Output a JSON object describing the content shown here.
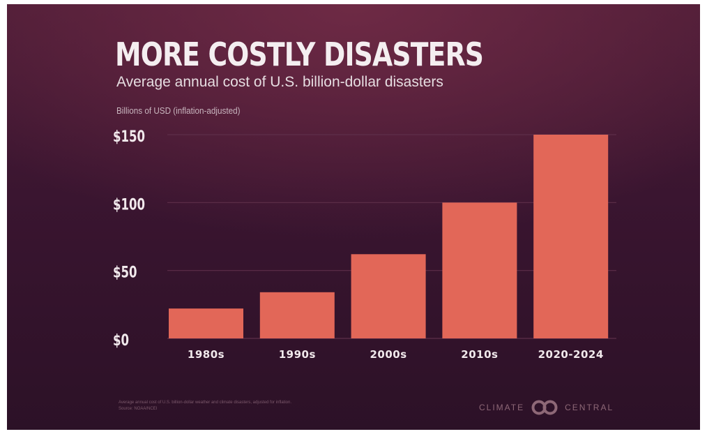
{
  "header": {
    "title": "MORE COSTLY DISASTERS",
    "subtitle": "Average annual cost of U.S. billion-dollar disasters",
    "unit_label": "Billions of USD (inflation-adjusted)"
  },
  "footer": {
    "note_line1": "Average annual cost of U.S. billion-dollar weather and climate disasters, adjusted for inflation.",
    "note_line2": "Source: NOAA/NCEI",
    "logo_left": "CLIMATE",
    "logo_right": "CENTRAL"
  },
  "colors": {
    "bar": "#e26758",
    "grid": "#5e2f4a",
    "tick_text": "#f1e9ec"
  },
  "chart_data": {
    "type": "bar",
    "title": "MORE COSTLY DISASTERS",
    "subtitle": "Average annual cost of U.S. billion-dollar disasters",
    "ylabel": "Billions of USD (inflation-adjusted)",
    "xlabel": "",
    "categories": [
      "1980s",
      "1990s",
      "2000s",
      "2010s",
      "2020-2024"
    ],
    "values": [
      22,
      34,
      62,
      100,
      150
    ],
    "ylim": [
      0,
      150
    ],
    "yticks": [
      0,
      50,
      100,
      150
    ],
    "ytick_labels": [
      "$0",
      "$50",
      "$100",
      "$150"
    ],
    "grid": true
  }
}
